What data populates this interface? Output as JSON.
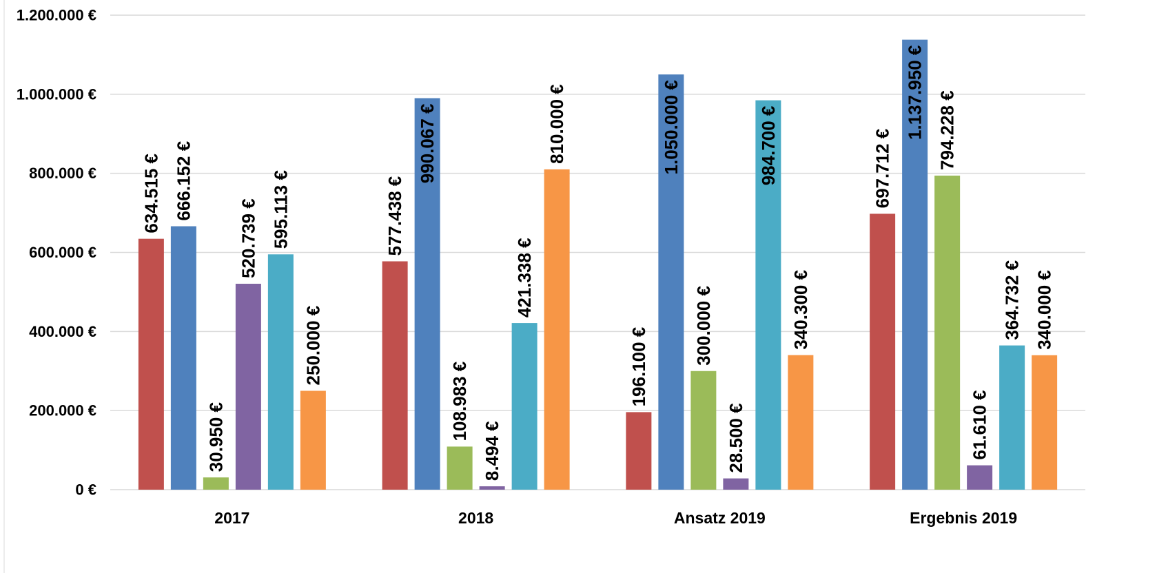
{
  "chart_data": {
    "type": "bar",
    "categories": [
      "2017",
      "2018",
      "Ansatz 2019",
      "Ergebnis 2019"
    ],
    "series": [
      {
        "color": "#c0504d",
        "values": [
          634515,
          577438,
          196100,
          697712
        ],
        "value_labels": [
          "634.515 €",
          "577.438 €",
          "196.100 €",
          "697.712 €"
        ]
      },
      {
        "color": "#4f81bd",
        "values": [
          666152,
          990067,
          1050000,
          1137950
        ],
        "value_labels": [
          "666.152 €",
          "990.067 €",
          "1.050.000 €",
          "1.137.950 €"
        ]
      },
      {
        "color": "#9bbb59",
        "values": [
          30950,
          108983,
          300000,
          794228
        ],
        "value_labels": [
          "30.950 €",
          "108.983 €",
          "300.000 €",
          "794.228 €"
        ]
      },
      {
        "color": "#8064a2",
        "values": [
          520739,
          8494,
          28500,
          61610
        ],
        "value_labels": [
          "520.739 €",
          "8.494 €",
          "28.500 €",
          "61.610 €"
        ]
      },
      {
        "color": "#4bacc6",
        "values": [
          595113,
          421338,
          984700,
          364732
        ],
        "value_labels": [
          "595.113 €",
          "421.338 €",
          "984.700 €",
          "364.732 €"
        ]
      },
      {
        "color": "#f79646",
        "values": [
          250000,
          810000,
          340300,
          340000
        ],
        "value_labels": [
          "250.000 €",
          "810.000 €",
          "340.300 €",
          "340.000 €"
        ]
      }
    ],
    "ylim": [
      0,
      1200000
    ],
    "yticks": [
      {
        "value": 0,
        "label": "0 €"
      },
      {
        "value": 200000,
        "label": "200.000 €"
      },
      {
        "value": 400000,
        "label": "400.000 €"
      },
      {
        "value": 600000,
        "label": "600.000 €"
      },
      {
        "value": 800000,
        "label": "800.000 €"
      },
      {
        "value": 1000000,
        "label": "1.000.000 €"
      },
      {
        "value": 1200000,
        "label": "1.200.000 €"
      }
    ],
    "grid": true
  }
}
